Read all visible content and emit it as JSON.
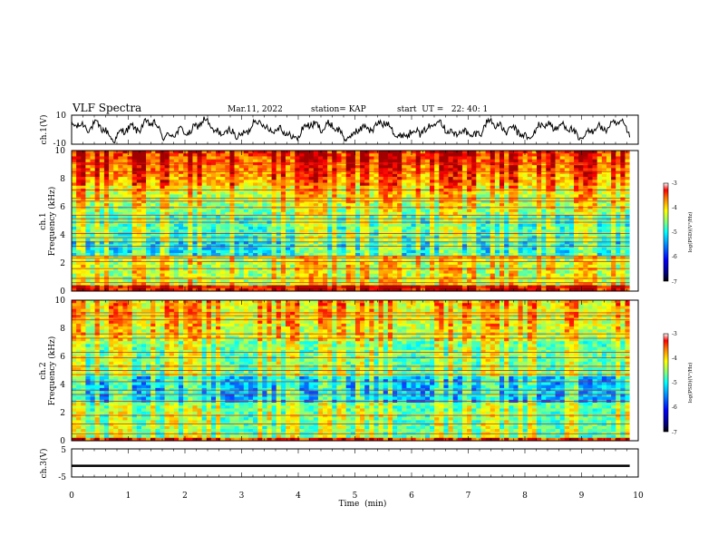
{
  "header": {
    "title": "VLF Spectra",
    "date": "Mar.11, 2022",
    "station": "station= KAP",
    "start": "start  UT =   22: 40: 1"
  },
  "colors": {
    "colormap": [
      "#7f0000",
      "#ff0000",
      "#ff7f00",
      "#ffff00",
      "#7fff7f",
      "#00ffff",
      "#007fff",
      "#0000ff",
      "#00007f",
      "#000000"
    ],
    "trace": "#000000"
  },
  "chart_data": [
    {
      "type": "line",
      "panel": "ch1-waveform",
      "ylabel": "ch.1(V)",
      "ylim": [
        -10,
        10
      ],
      "y_ticks": [
        "10",
        "-10"
      ],
      "x_range": [
        0,
        9.85
      ],
      "amplitude_mean": 0,
      "amplitude_range": [
        -9,
        9
      ]
    },
    {
      "type": "heatmap",
      "panel": "ch1-spectrogram",
      "ylabel_line1": "ch.1",
      "ylabel_line2": "Frequency  (kHz)",
      "ylim": [
        0,
        10
      ],
      "y_ticks": [
        "0",
        "2",
        "4",
        "6",
        "8",
        "10"
      ],
      "x_range": [
        0,
        9.85
      ],
      "colorbar": {
        "label": "log(PSD)(V²/Hz)",
        "range": [
          -7,
          -3
        ],
        "ticks": [
          "-3",
          "-4",
          "-5",
          "-6",
          "-7"
        ]
      },
      "narrowband_lines_khz": [
        0.3,
        0.6,
        0.9,
        1.6,
        2.1,
        2.35,
        2.5,
        3.2,
        3.5,
        3.8,
        4.1,
        4.9,
        5.15,
        5.4,
        5.95,
        6.4,
        6.6,
        7.2,
        8.5,
        9.1
      ]
    },
    {
      "type": "heatmap",
      "panel": "ch2-spectrogram",
      "ylabel_line1": "ch.2",
      "ylabel_line2": "Frequency  (kHz)",
      "ylim": [
        0,
        10
      ],
      "y_ticks": [
        "0",
        "2",
        "4",
        "6",
        "8",
        "10"
      ],
      "x_range": [
        0,
        9.85
      ],
      "colorbar": {
        "label": "log(PSD)(V²/Hz)",
        "range": [
          -7,
          -3
        ],
        "ticks": [
          "-3",
          "-4",
          "-5",
          "-6",
          "-7"
        ]
      },
      "narrowband_lines_khz": [
        0.5,
        1.2,
        1.8,
        2.8,
        3.3,
        3.6,
        4.2,
        4.7,
        5.0,
        5.3,
        5.9,
        6.3,
        7.3,
        7.6,
        8.6,
        8.9,
        9.1
      ]
    },
    {
      "type": "line",
      "panel": "ch3-waveform",
      "ylabel": "ch.3(V)",
      "ylim": [
        -5,
        5
      ],
      "y_ticks": [
        "5",
        "-5"
      ],
      "x_range": [
        0,
        9.85
      ],
      "band_center": -1,
      "band_halfwidth": 0.4
    }
  ],
  "x_axis": {
    "label": "Time  (min)",
    "range": [
      0,
      10
    ],
    "ticks": [
      "0",
      "1",
      "2",
      "3",
      "4",
      "5",
      "6",
      "7",
      "8",
      "9",
      "10"
    ]
  }
}
